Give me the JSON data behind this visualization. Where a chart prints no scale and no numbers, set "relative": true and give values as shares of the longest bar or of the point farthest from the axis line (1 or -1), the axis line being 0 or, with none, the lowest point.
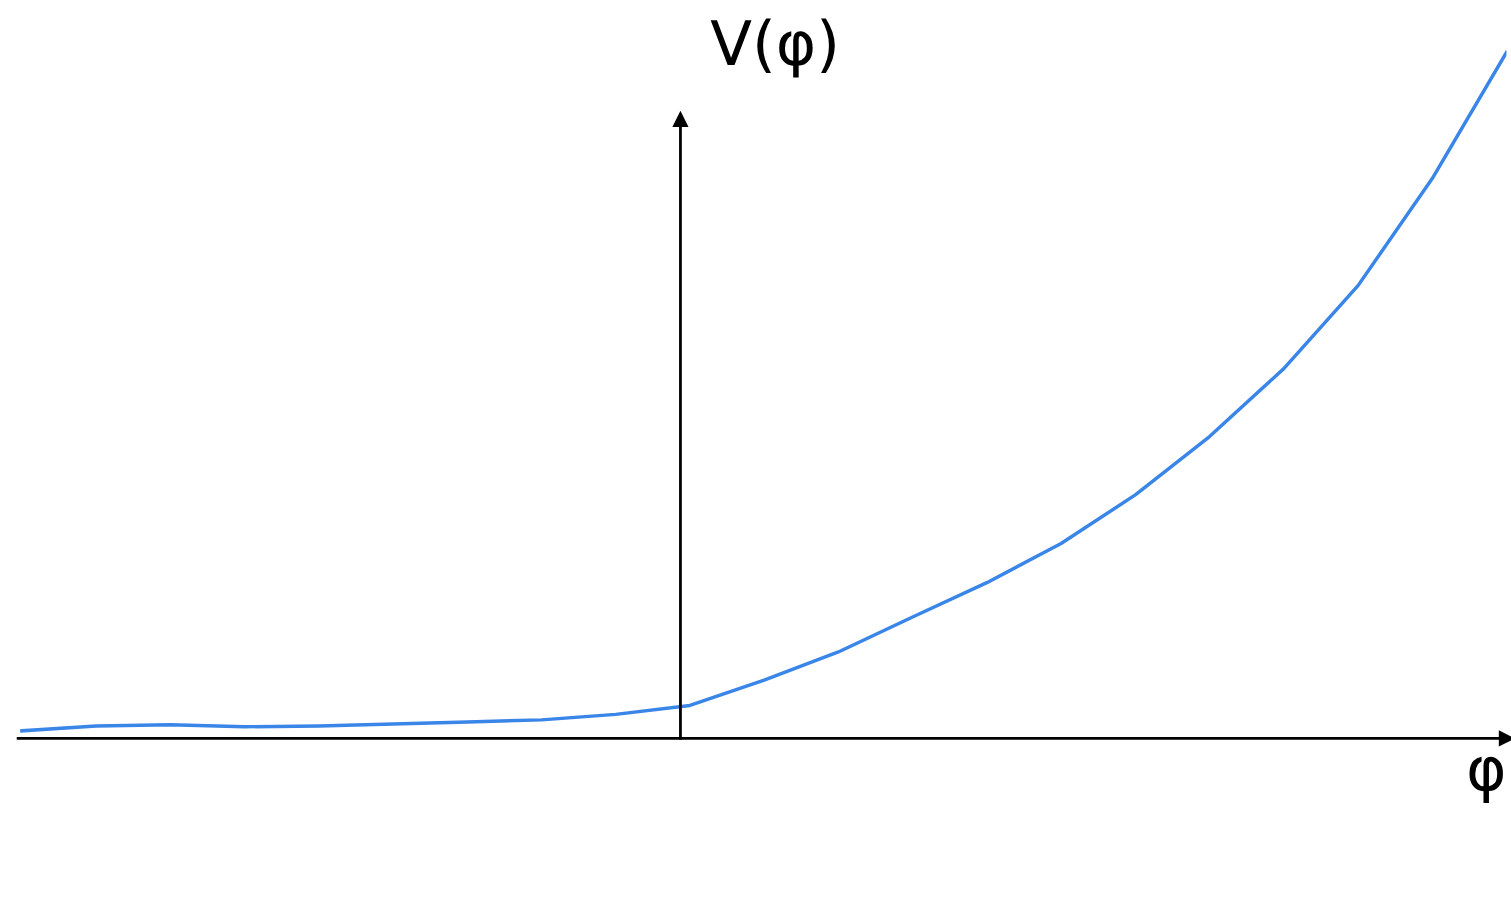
{
  "chart_data": {
    "type": "line",
    "relative": true,
    "xlabel": "φ",
    "ylabel": "V(φ)",
    "categories": [
      null,
      null,
      null,
      null,
      null,
      null,
      null,
      null,
      null,
      null,
      null,
      null,
      null,
      null,
      null,
      null,
      null,
      null,
      null,
      null,
      null
    ],
    "series": [
      {
        "color": "#3a86e8",
        "values": [
          0.011,
          0.018,
          0.02,
          0.017,
          0.018,
          0.021,
          0.024,
          0.027,
          0.035,
          0.048,
          0.085,
          0.126,
          0.177,
          0.227,
          0.284,
          0.355,
          0.44,
          0.539,
          0.66,
          0.816,
          1.0
        ]
      }
    ],
    "legend": false,
    "marker": "none",
    "line_style": "solid"
  }
}
